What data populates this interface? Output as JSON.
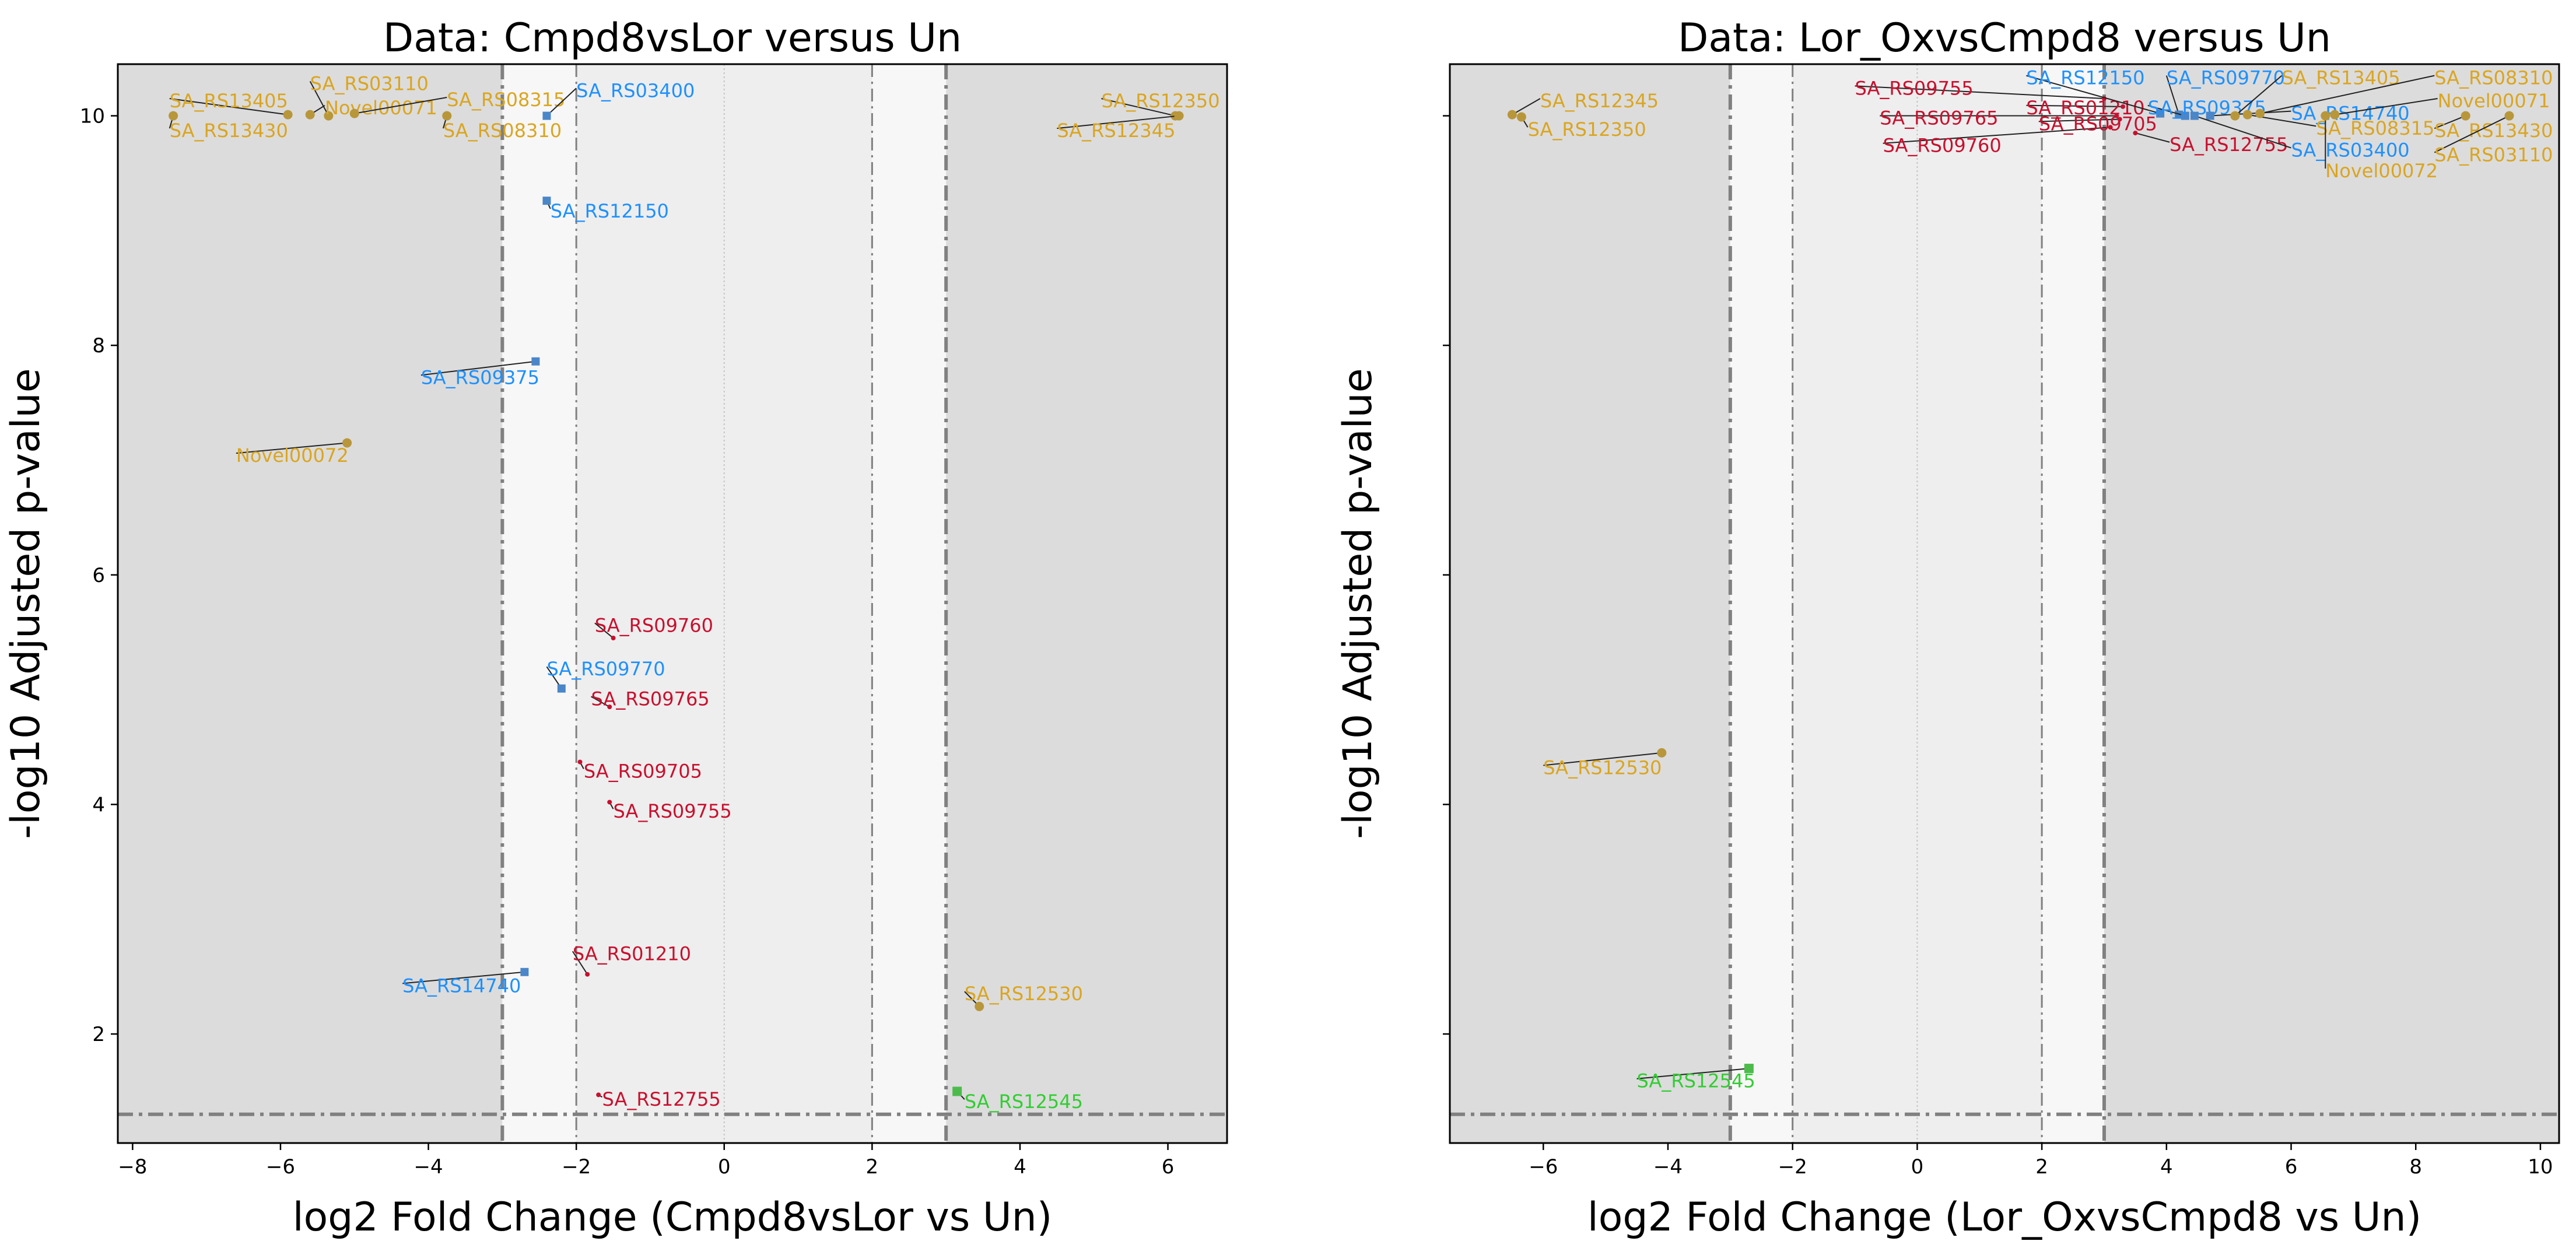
{
  "colors": {
    "background": "#ffffff",
    "outer_band": "#dcdcdc",
    "mid_band": "#f7f7f7",
    "inner_band": "#eeeeee",
    "threshold_line": "#808080",
    "zero_line": "#c4c4c4",
    "gold": "#daa520",
    "gold_marker": "#b8963a",
    "blue": "#1e90ff",
    "blue_marker": "#4a86c8",
    "red": "#c8102e",
    "green": "#32cd32",
    "green_marker": "#4cbb4c"
  },
  "chart_data": [
    {
      "type": "scatter",
      "title": "Data: Cmpd8vsLor versus Un",
      "xlabel": "log2 Fold Change (Cmpd8vsLor vs Un)",
      "ylabel": "-log10 Adjusted p-value",
      "xlim": [
        -8.2,
        6.8
      ],
      "ylim": [
        1.05,
        10.45
      ],
      "xticks": [
        -8,
        -6,
        -4,
        -2,
        0,
        2,
        4,
        6
      ],
      "yticks": [
        2,
        4,
        6,
        8,
        10
      ],
      "show_ytick_labels": true,
      "thresholds": {
        "fc_strong": 3,
        "fc_weak": 2,
        "p_line": 1.3
      },
      "points": [
        {
          "label": "SA_RS13405",
          "x": -5.9,
          "y": 10.01,
          "color": "gold",
          "lx": -7.5,
          "ly": 10.13
        },
        {
          "label": "SA_RS13430",
          "x": -7.45,
          "y": 10.0,
          "color": "gold",
          "lx": -7.5,
          "ly": 9.87
        },
        {
          "label": "SA_RS03110",
          "x": -5.35,
          "y": 10.0,
          "color": "gold",
          "lx": -5.6,
          "ly": 10.28
        },
        {
          "label": "Novel00071",
          "x": -5.6,
          "y": 10.01,
          "color": "gold",
          "lx": -5.4,
          "ly": 10.07
        },
        {
          "label": "SA_RS08315",
          "x": -5.0,
          "y": 10.02,
          "color": "gold",
          "lx": -3.75,
          "ly": 10.14
        },
        {
          "label": "SA_RS08310",
          "x": -3.75,
          "y": 10.0,
          "color": "gold",
          "lx": -3.8,
          "ly": 9.87
        },
        {
          "label": "SA_RS03400",
          "x": -2.4,
          "y": 10.0,
          "color": "blue",
          "lx": -2.0,
          "ly": 10.22
        },
        {
          "label": "SA_RS12350",
          "x": 6.1,
          "y": 10.0,
          "color": "gold",
          "lx": 5.1,
          "ly": 10.13
        },
        {
          "label": "SA_RS12345",
          "x": 6.15,
          "y": 10.0,
          "color": "gold",
          "lx": 4.5,
          "ly": 9.87
        },
        {
          "label": "SA_RS12150",
          "x": -2.4,
          "y": 9.26,
          "color": "blue",
          "lx": -2.35,
          "ly": 9.17
        },
        {
          "label": "SA_RS09375",
          "x": -2.55,
          "y": 7.86,
          "color": "blue",
          "lx": -4.1,
          "ly": 7.72
        },
        {
          "label": "Novel00072",
          "x": -5.1,
          "y": 7.15,
          "color": "gold",
          "lx": -6.6,
          "ly": 7.04
        },
        {
          "label": "SA_RS09760",
          "x": -1.5,
          "y": 5.45,
          "color": "red",
          "lx": -1.75,
          "ly": 5.56
        },
        {
          "label": "SA_RS09770",
          "x": -2.2,
          "y": 5.01,
          "color": "blue",
          "lx": -2.4,
          "ly": 5.18
        },
        {
          "label": "SA_RS09765",
          "x": -1.55,
          "y": 4.85,
          "color": "red",
          "lx": -1.8,
          "ly": 4.92
        },
        {
          "label": "SA_RS09705",
          "x": -1.95,
          "y": 4.37,
          "color": "red",
          "lx": -1.9,
          "ly": 4.29
        },
        {
          "label": "SA_RS09755",
          "x": -1.55,
          "y": 4.02,
          "color": "red",
          "lx": -1.5,
          "ly": 3.94
        },
        {
          "label": "SA_RS01210",
          "x": -1.85,
          "y": 2.52,
          "color": "red",
          "lx": -2.05,
          "ly": 2.7
        },
        {
          "label": "SA_RS14740",
          "x": -2.7,
          "y": 2.54,
          "color": "blue",
          "lx": -4.35,
          "ly": 2.42
        },
        {
          "label": "SA_RS12530",
          "x": 3.45,
          "y": 2.24,
          "color": "gold",
          "lx": 3.25,
          "ly": 2.35
        },
        {
          "label": "SA_RS12545",
          "x": 3.15,
          "y": 1.5,
          "color": "green",
          "lx": 3.25,
          "ly": 1.41
        },
        {
          "label": "SA_RS12755",
          "x": -1.7,
          "y": 1.47,
          "color": "red",
          "lx": -1.65,
          "ly": 1.43
        }
      ]
    },
    {
      "type": "scatter",
      "title": "Data: Lor_OxvsCmpd8 versus Un",
      "xlabel": "log2 Fold Change (Lor_OxvsCmpd8 vs Un)",
      "ylabel": "-log10 Adjusted p-value",
      "xlim": [
        -7.5,
        10.3
      ],
      "ylim": [
        1.05,
        10.45
      ],
      "xticks": [
        -6,
        -4,
        -2,
        0,
        2,
        4,
        6,
        8,
        10
      ],
      "yticks": [
        2,
        4,
        6,
        8,
        10
      ],
      "show_ytick_labels": false,
      "thresholds": {
        "fc_strong": 3,
        "fc_weak": 2,
        "p_line": 1.3
      },
      "points": [
        {
          "label": "SA_RS12345",
          "x": -6.5,
          "y": 10.01,
          "color": "gold",
          "lx": -6.05,
          "ly": 10.13
        },
        {
          "label": "SA_RS12350",
          "x": -6.35,
          "y": 9.99,
          "color": "gold",
          "lx": -6.25,
          "ly": 9.88
        },
        {
          "label": "SA_RS09755",
          "x": 3.0,
          "y": 10.15,
          "color": "red",
          "lx": -1.0,
          "ly": 10.24
        },
        {
          "label": "SA_RS09765",
          "x": 3.2,
          "y": 10.0,
          "color": "red",
          "lx": -0.6,
          "ly": 9.98
        },
        {
          "label": "SA_RS09760",
          "x": 3.1,
          "y": 9.9,
          "color": "red",
          "lx": -0.55,
          "ly": 9.74
        },
        {
          "label": "SA_RS01210",
          "x": 3.3,
          "y": 10.08,
          "color": "red",
          "lx": 1.75,
          "ly": 10.07
        },
        {
          "label": "SA_RS09705",
          "x": 3.25,
          "y": 9.97,
          "color": "red",
          "lx": 1.95,
          "ly": 9.93
        },
        {
          "label": "SA_RS12755",
          "x": 3.5,
          "y": 9.85,
          "color": "red",
          "lx": 4.05,
          "ly": 9.75
        },
        {
          "label": "SA_RS12150",
          "x": 3.9,
          "y": 10.02,
          "color": "blue",
          "lx": 1.75,
          "ly": 10.33
        },
        {
          "label": "SA_RS09770",
          "x": 4.2,
          "y": 10.01,
          "color": "blue",
          "lx": 4.0,
          "ly": 10.33
        },
        {
          "label": "SA_RS09375",
          "x": 4.3,
          "y": 10.0,
          "color": "blue",
          "lx": 3.7,
          "ly": 10.07
        },
        {
          "label": "SA_RS14740",
          "x": 4.7,
          "y": 10.0,
          "color": "blue",
          "lx": 6.0,
          "ly": 10.02
        },
        {
          "label": "SA_RS03400",
          "x": 4.45,
          "y": 10.0,
          "color": "blue",
          "lx": 6.0,
          "ly": 9.7
        },
        {
          "label": "SA_RS13405",
          "x": 5.1,
          "y": 10.0,
          "color": "gold",
          "lx": 5.85,
          "ly": 10.33
        },
        {
          "label": "SA_RS08315",
          "x": 5.3,
          "y": 10.01,
          "color": "gold",
          "lx": 6.4,
          "ly": 9.89
        },
        {
          "label": "Novel00072",
          "x": 6.55,
          "y": 10.0,
          "color": "gold",
          "lx": 6.55,
          "ly": 9.52
        },
        {
          "label": "SA_RS08310",
          "x": 5.5,
          "y": 10.02,
          "color": "gold",
          "lx": 8.3,
          "ly": 10.33
        },
        {
          "label": "Novel00071",
          "x": 6.7,
          "y": 10.01,
          "color": "gold",
          "lx": 8.35,
          "ly": 10.13
        },
        {
          "label": "SA_RS13430",
          "x": 8.8,
          "y": 10.0,
          "color": "gold",
          "lx": 8.3,
          "ly": 9.87
        },
        {
          "label": "SA_RS03110",
          "x": 9.5,
          "y": 10.0,
          "color": "gold",
          "lx": 8.3,
          "ly": 9.66
        },
        {
          "label": "SA_RS12530",
          "x": -4.1,
          "y": 4.45,
          "color": "gold",
          "lx": -6.0,
          "ly": 4.32
        },
        {
          "label": "SA_RS12545",
          "x": -2.7,
          "y": 1.7,
          "color": "green",
          "lx": -4.5,
          "ly": 1.59
        }
      ]
    }
  ]
}
